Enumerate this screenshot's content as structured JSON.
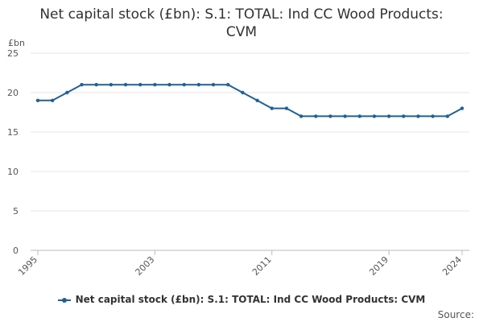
{
  "chart_data": {
    "type": "line",
    "title_line1": "Net capital stock (£bn): S.1: TOTAL: Ind CC Wood Products:",
    "title_line2": "CVM",
    "ylabel": "£bn",
    "xlabel": "",
    "ylim": [
      0,
      25
    ],
    "yticks": [
      0,
      5,
      10,
      15,
      20,
      25
    ],
    "xticks": [
      "1995",
      "2003",
      "2011",
      "2019",
      "2024"
    ],
    "grid": true,
    "legend_position": "bottom",
    "x": [
      1995,
      1996,
      1997,
      1998,
      1999,
      2000,
      2001,
      2002,
      2003,
      2004,
      2005,
      2006,
      2007,
      2008,
      2009,
      2010,
      2011,
      2012,
      2013,
      2014,
      2015,
      2016,
      2017,
      2018,
      2019,
      2020,
      2021,
      2022,
      2023,
      2024
    ],
    "series": [
      {
        "name": "Net capital stock (£bn): S.1: TOTAL: Ind CC Wood Products: CVM",
        "color": "#206095",
        "values": [
          19,
          19,
          20,
          21,
          21,
          21,
          21,
          21,
          21,
          21,
          21,
          21,
          21,
          21,
          20,
          19,
          18,
          18,
          17,
          17,
          17,
          17,
          17,
          17,
          17,
          17,
          17,
          17,
          17,
          18
        ]
      }
    ],
    "source_label": "Source:"
  }
}
